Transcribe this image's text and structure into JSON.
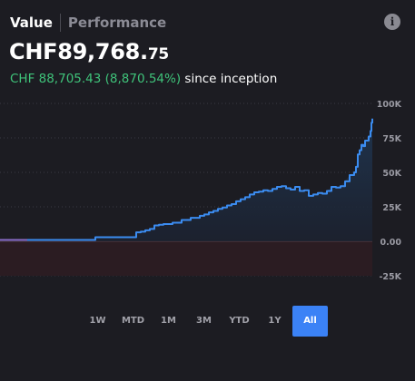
{
  "header": {
    "tabs": [
      {
        "label": "Value",
        "active": true
      },
      {
        "label": "Performance",
        "active": false
      }
    ],
    "info_icon": "info-icon",
    "info_glyph": "i"
  },
  "summary": {
    "value_main": "CHF89,768.",
    "value_cents": "75",
    "gain_text": "CHF 88,705.43 (8,870.54%)",
    "since_text": "since inception"
  },
  "range_selector": {
    "options": [
      "1W",
      "MTD",
      "1M",
      "3M",
      "YTD",
      "1Y",
      "All"
    ],
    "selected": "All"
  },
  "colors": {
    "background": "#1c1c22",
    "line": "#3b8cf0",
    "line_pre": "#8a6cc8",
    "negative_zone": "#2b1c22",
    "gain": "#3fc37a",
    "accent": "#3b82f6"
  },
  "chart_data": {
    "type": "area",
    "ylim": [
      -25000,
      100000
    ],
    "y_ticks": [
      "100K",
      "75K",
      "50K",
      "25K",
      "0.00",
      "-25K"
    ],
    "grid": true,
    "x": [
      0,
      10,
      20,
      30,
      40,
      50,
      60,
      70,
      80,
      90,
      100,
      105,
      110,
      115,
      125,
      135,
      145,
      150,
      155,
      160,
      165,
      170,
      175,
      180,
      190,
      200,
      210,
      215,
      220,
      225,
      230,
      235,
      240,
      245,
      250,
      255,
      260,
      265,
      270,
      275,
      280,
      285,
      290,
      295,
      300,
      305,
      310,
      315,
      320,
      325,
      330,
      335,
      340,
      345,
      350,
      355,
      360,
      365,
      370,
      375,
      380,
      385,
      390,
      392,
      394,
      396,
      398,
      400,
      402,
      404,
      406,
      408,
      409,
      410
    ],
    "y": [
      1000,
      1000,
      1000,
      1000,
      1000,
      1000,
      1000,
      1000,
      1000,
      1000,
      1000,
      3000,
      3000,
      3000,
      3000,
      3000,
      3000,
      6500,
      7000,
      8000,
      9000,
      11500,
      12000,
      12500,
      13500,
      15500,
      17000,
      17000,
      18500,
      19500,
      21000,
      22000,
      23500,
      24500,
      26000,
      27000,
      29000,
      30500,
      32000,
      34000,
      35500,
      36000,
      37000,
      36500,
      38000,
      39500,
      40000,
      38500,
      37500,
      39500,
      36500,
      37000,
      33000,
      34000,
      35000,
      34500,
      36500,
      39500,
      39000,
      40000,
      43500,
      48000,
      50000,
      54000,
      63000,
      66000,
      70000,
      69000,
      73000,
      73000,
      76000,
      80000,
      86000,
      89000
    ],
    "series": [
      {
        "values_ref": "y"
      }
    ]
  }
}
